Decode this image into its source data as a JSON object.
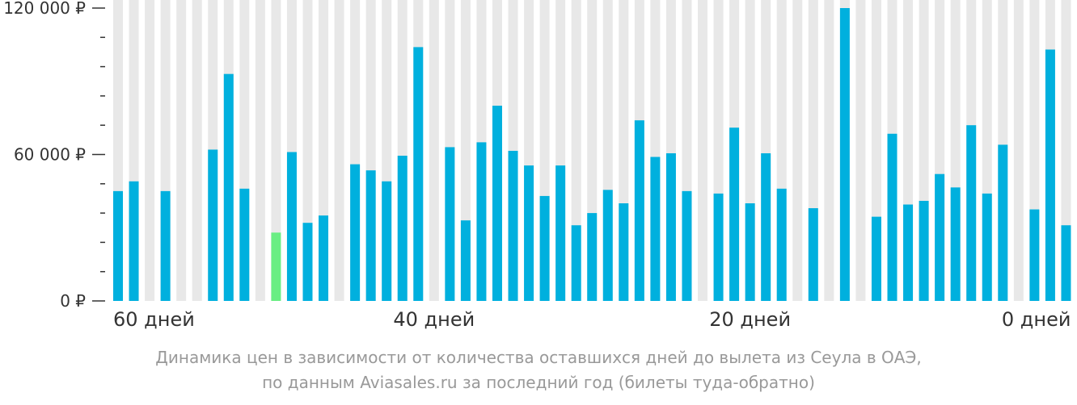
{
  "chart_data": {
    "type": "bar",
    "x": [
      60,
      59,
      58,
      57,
      56,
      55,
      54,
      53,
      52,
      51,
      50,
      49,
      48,
      47,
      46,
      45,
      44,
      43,
      42,
      41,
      40,
      39,
      38,
      37,
      36,
      35,
      34,
      33,
      32,
      31,
      30,
      29,
      28,
      27,
      26,
      25,
      24,
      23,
      22,
      21,
      20,
      19,
      18,
      17,
      16,
      15,
      14,
      13,
      12,
      11,
      10,
      9,
      8,
      7,
      6,
      5,
      4,
      3,
      2,
      1,
      0
    ],
    "values": [
      45000,
      49000,
      null,
      45000,
      null,
      null,
      62000,
      93000,
      46000,
      null,
      28000,
      61000,
      32000,
      35000,
      null,
      56000,
      53500,
      49000,
      59500,
      104000,
      null,
      63000,
      33000,
      65000,
      80000,
      61500,
      55500,
      43000,
      55500,
      31000,
      36000,
      45500,
      40000,
      74000,
      59000,
      60500,
      45000,
      null,
      44000,
      71000,
      40000,
      60500,
      46000,
      null,
      38000,
      null,
      120000,
      null,
      34500,
      68500,
      39500,
      41000,
      52000,
      46500,
      72000,
      44000,
      64000,
      null,
      37500,
      103000,
      31000
    ],
    "highlight_index": 10,
    "y_ticks": [
      {
        "value": 0,
        "label": "0 ₽"
      },
      {
        "value": 60000,
        "label": "60 000 ₽"
      },
      {
        "value": 120000,
        "label": "120 000 ₽"
      }
    ],
    "x_ticks": [
      {
        "value": 60,
        "label": "60 дней"
      },
      {
        "value": 40,
        "label": "40 дней"
      },
      {
        "value": 20,
        "label": "20 дней"
      },
      {
        "value": 0,
        "label": "0 дней"
      }
    ],
    "ylim": [
      0,
      120000
    ],
    "minor_y_step": 12000,
    "grid": false,
    "colors": {
      "bar": "#00b0de",
      "highlight": "#69ee83",
      "background_column": "#e8e8e8",
      "axis_text": "#333333",
      "caption": "#999999"
    }
  },
  "caption": {
    "line1": "Динамика цен в зависимости от количества оставшихся дней до вылета из Сеула в ОАЭ,",
    "line2": "по данным Aviasales.ru за последний год (билеты туда-обратно)"
  }
}
